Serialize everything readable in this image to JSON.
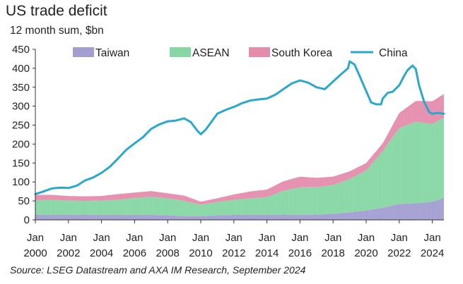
{
  "title": "US trade deficit",
  "subtitle": "12 month sum, $bn",
  "source": "Source: LSEG Datastream and AXA IM Research, September 2024",
  "colors": {
    "taiwan": "#a39ed2",
    "asean": "#86d7a3",
    "korea": "#e58cad",
    "china": "#2aa8cc"
  },
  "chart_data": {
    "type": "area",
    "stacked": true,
    "x_axis": {
      "ticks": [
        "2000",
        "2002",
        "2004",
        "2006",
        "2008",
        "2010",
        "2012",
        "2014",
        "2016",
        "2018",
        "2020",
        "2022",
        "2024"
      ],
      "tick_prefix": "Jan",
      "range": [
        2000.0,
        2024.7
      ]
    },
    "y_axis": {
      "range": [
        0,
        450
      ],
      "ticks": [
        0,
        50,
        100,
        150,
        200,
        250,
        300,
        350,
        400,
        450
      ]
    },
    "legend": {
      "placement": "top",
      "items": [
        {
          "key": "taiwan",
          "label": "Taiwan",
          "kind": "area"
        },
        {
          "key": "asean",
          "label": "ASEAN",
          "kind": "area"
        },
        {
          "key": "korea",
          "label": "South Korea",
          "kind": "area"
        },
        {
          "key": "china",
          "label": "China",
          "kind": "line"
        }
      ]
    },
    "series": [
      {
        "key": "taiwan",
        "name": "Taiwan",
        "type": "stacked-area",
        "x": [
          2000,
          2001,
          2002,
          2003,
          2004,
          2005,
          2006,
          2007,
          2008,
          2009,
          2010,
          2011,
          2012,
          2013,
          2014,
          2015,
          2016,
          2017,
          2018,
          2019,
          2020,
          2021,
          2022,
          2023,
          2024,
          2024.7
        ],
        "values": [
          14,
          13,
          13,
          14,
          13,
          13,
          13,
          13,
          12,
          10,
          10,
          12,
          13,
          13,
          13,
          14,
          13,
          14,
          16,
          20,
          25,
          32,
          42,
          44,
          48,
          58
        ]
      },
      {
        "key": "asean",
        "name": "ASEAN",
        "type": "stacked-area",
        "x": [
          2000,
          2001,
          2002,
          2003,
          2004,
          2005,
          2006,
          2007,
          2008,
          2009,
          2010,
          2011,
          2012,
          2013,
          2014,
          2015,
          2016,
          2017,
          2018,
          2019,
          2020,
          2021,
          2022,
          2023,
          2024,
          2024.7
        ],
        "values": [
          38,
          40,
          38,
          36,
          38,
          40,
          45,
          48,
          45,
          40,
          30,
          35,
          40,
          44,
          47,
          63,
          73,
          72,
          76,
          88,
          105,
          150,
          200,
          215,
          205,
          212
        ]
      },
      {
        "key": "korea",
        "name": "South Korea",
        "type": "stacked-area",
        "x": [
          2000,
          2001,
          2002,
          2003,
          2004,
          2005,
          2006,
          2007,
          2008,
          2009,
          2010,
          2011,
          2012,
          2013,
          2014,
          2015,
          2016,
          2017,
          2018,
          2019,
          2020,
          2021,
          2022,
          2023,
          2024,
          2024.7
        ],
        "values": [
          14,
          13,
          12,
          12,
          12,
          15,
          14,
          15,
          13,
          14,
          8,
          10,
          14,
          18,
          20,
          25,
          28,
          25,
          22,
          20,
          20,
          20,
          40,
          55,
          60,
          62
        ]
      },
      {
        "key": "china",
        "name": "China",
        "type": "line",
        "x": [
          2000,
          2000.5,
          2001,
          2001.5,
          2002,
          2002.5,
          2003,
          2003.5,
          2004,
          2004.5,
          2005,
          2005.5,
          2006,
          2006.5,
          2007,
          2007.5,
          2008,
          2008.5,
          2009,
          2009.4,
          2009.8,
          2010,
          2010.3,
          2010.7,
          2011,
          2011.5,
          2012,
          2012.5,
          2013,
          2013.5,
          2014,
          2014.5,
          2015,
          2015.5,
          2016,
          2016.5,
          2017,
          2017.5,
          2018,
          2018.5,
          2018.9,
          2019,
          2019.3,
          2019.6,
          2020,
          2020.3,
          2020.6,
          2020.9,
          2021,
          2021.3,
          2021.6,
          2022,
          2022.3,
          2022.5,
          2022.8,
          2023,
          2023.2,
          2023.5,
          2023.8,
          2024,
          2024.3,
          2024.7
        ],
        "values": [
          68,
          75,
          83,
          85,
          84,
          90,
          104,
          112,
          124,
          140,
          162,
          185,
          202,
          218,
          240,
          252,
          260,
          262,
          268,
          258,
          235,
          226,
          238,
          262,
          280,
          290,
          298,
          308,
          315,
          318,
          320,
          330,
          345,
          360,
          368,
          362,
          350,
          345,
          365,
          385,
          400,
          418,
          410,
          380,
          340,
          310,
          305,
          305,
          320,
          335,
          338,
          355,
          380,
          395,
          407,
          398,
          355,
          312,
          285,
          280,
          282,
          280
        ]
      }
    ]
  }
}
